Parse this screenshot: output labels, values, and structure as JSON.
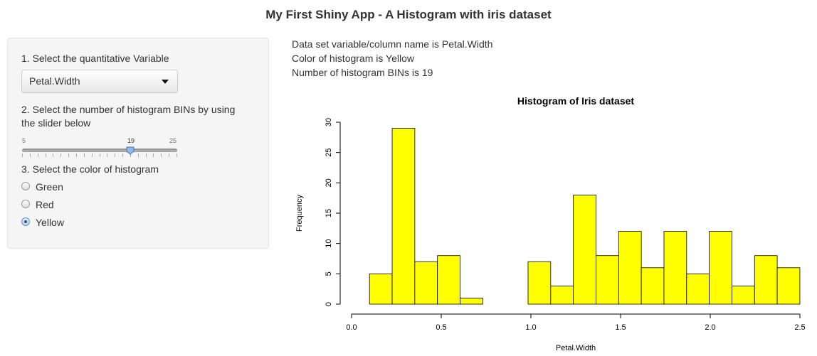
{
  "app": {
    "title": "My First Shiny App - A Histogram with iris dataset"
  },
  "sidebar": {
    "variable_label": "1. Select the quantitative Variable",
    "variable_value": "Petal.Width",
    "bins_label_line1": "2. Select the number of histogram BINs by using",
    "bins_label_line2": "the slider below",
    "slider": {
      "min": 5,
      "max": 25,
      "value": 19,
      "min_label": "5",
      "max_label": "25",
      "value_label": "19"
    },
    "color_label": "3. Select the color of histogram",
    "color_options": [
      {
        "label": "Green",
        "checked": false
      },
      {
        "label": "Red",
        "checked": false
      },
      {
        "label": "Yellow",
        "checked": true
      }
    ]
  },
  "main": {
    "info_variable": "Data set variable/column name is Petal.Width",
    "info_color": "Color of histogram is Yellow",
    "info_bins": "Number of histogram BINs is 19"
  },
  "colors": {
    "bar_fill": "#ffff00",
    "bar_stroke": "#000000"
  },
  "chart_data": {
    "type": "bar",
    "title": "Histogram of Iris dataset",
    "xlabel": "Petal.Width",
    "ylabel": "Frequency",
    "xlim": [
      0.0,
      2.5
    ],
    "ylim": [
      0,
      30
    ],
    "x_ticks": [
      "0.0",
      "0.5",
      "1.0",
      "1.5",
      "2.0",
      "2.5"
    ],
    "y_ticks": [
      "0",
      "5",
      "10",
      "15",
      "20",
      "25",
      "30"
    ],
    "bin_start": 0.1,
    "bin_width": 0.1263,
    "values": [
      5,
      29,
      7,
      8,
      1,
      0,
      0,
      7,
      3,
      18,
      8,
      12,
      6,
      12,
      5,
      12,
      3,
      8,
      6
    ],
    "grid": false
  }
}
